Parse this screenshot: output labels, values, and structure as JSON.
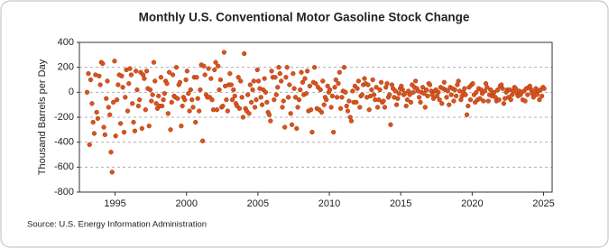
{
  "chart_data": {
    "type": "scatter",
    "title": "Monthly U.S. Conventional Motor Gasoline Stock Change",
    "y_label": "Thousand Barrels per Day",
    "source": "Source: U.S. Energy Information Administration",
    "color": "#d9541e",
    "grid": true,
    "xlim": [
      1992.5,
      2025.6
    ],
    "xticks": [
      1995,
      2000,
      2005,
      2010,
      2015,
      2020,
      2025
    ],
    "ylim": [
      -800,
      400
    ],
    "yticks": [
      -800,
      -600,
      -400,
      -200,
      0,
      200,
      400
    ],
    "x": [
      1993.04,
      1993.13,
      1993.21,
      1993.29,
      1993.38,
      1993.46,
      1993.54,
      1993.63,
      1993.71,
      1993.79,
      1993.88,
      1993.96,
      1994.04,
      1994.13,
      1994.21,
      1994.29,
      1994.38,
      1994.46,
      1994.54,
      1994.63,
      1994.71,
      1994.79,
      1994.88,
      1994.96,
      1995.04,
      1995.13,
      1995.21,
      1995.29,
      1995.38,
      1995.46,
      1995.54,
      1995.63,
      1995.71,
      1995.79,
      1995.88,
      1995.96,
      1996.04,
      1996.13,
      1996.21,
      1996.29,
      1996.38,
      1996.46,
      1996.54,
      1996.63,
      1996.71,
      1996.79,
      1996.88,
      1996.96,
      1997.04,
      1997.13,
      1997.21,
      1997.29,
      1997.38,
      1997.46,
      1997.54,
      1997.63,
      1997.71,
      1997.79,
      1997.88,
      1997.96,
      1998.04,
      1998.13,
      1998.21,
      1998.29,
      1998.38,
      1998.46,
      1998.54,
      1998.63,
      1998.71,
      1998.79,
      1998.88,
      1998.96,
      1999.04,
      1999.13,
      1999.21,
      1999.29,
      1999.38,
      1999.46,
      1999.54,
      1999.63,
      1999.71,
      1999.79,
      1999.88,
      1999.96,
      2000.04,
      2000.13,
      2000.21,
      2000.29,
      2000.38,
      2000.46,
      2000.54,
      2000.63,
      2000.71,
      2000.79,
      2000.88,
      2000.96,
      2001.04,
      2001.13,
      2001.21,
      2001.29,
      2001.38,
      2001.46,
      2001.54,
      2001.63,
      2001.71,
      2001.79,
      2001.88,
      2001.96,
      2002.04,
      2002.13,
      2002.21,
      2002.29,
      2002.38,
      2002.46,
      2002.54,
      2002.63,
      2002.71,
      2002.79,
      2002.88,
      2002.96,
      2003.04,
      2003.13,
      2003.21,
      2003.29,
      2003.38,
      2003.46,
      2003.54,
      2003.63,
      2003.71,
      2003.79,
      2003.88,
      2003.96,
      2004.04,
      2004.13,
      2004.21,
      2004.29,
      2004.38,
      2004.46,
      2004.54,
      2004.63,
      2004.71,
      2004.79,
      2004.88,
      2004.96,
      2005.04,
      2005.13,
      2005.21,
      2005.29,
      2005.38,
      2005.46,
      2005.54,
      2005.63,
      2005.71,
      2005.79,
      2005.88,
      2005.96,
      2006.04,
      2006.13,
      2006.21,
      2006.29,
      2006.38,
      2006.46,
      2006.54,
      2006.63,
      2006.71,
      2006.79,
      2006.88,
      2006.96,
      2007.04,
      2007.13,
      2007.21,
      2007.29,
      2007.38,
      2007.46,
      2007.54,
      2007.63,
      2007.71,
      2007.79,
      2007.88,
      2007.96,
      2008.04,
      2008.13,
      2008.21,
      2008.29,
      2008.38,
      2008.46,
      2008.54,
      2008.63,
      2008.71,
      2008.79,
      2008.88,
      2008.96,
      2009.04,
      2009.13,
      2009.21,
      2009.29,
      2009.38,
      2009.46,
      2009.54,
      2009.63,
      2009.71,
      2009.79,
      2009.88,
      2009.96,
      2010.04,
      2010.13,
      2010.21,
      2010.29,
      2010.38,
      2010.46,
      2010.54,
      2010.63,
      2010.71,
      2010.79,
      2010.88,
      2010.96,
      2011.04,
      2011.13,
      2011.21,
      2011.29,
      2011.38,
      2011.46,
      2011.54,
      2011.63,
      2011.71,
      2011.79,
      2011.88,
      2011.96,
      2012.04,
      2012.13,
      2012.21,
      2012.29,
      2012.38,
      2012.46,
      2012.54,
      2012.63,
      2012.71,
      2012.79,
      2012.88,
      2012.96,
      2013.04,
      2013.13,
      2013.21,
      2013.29,
      2013.38,
      2013.46,
      2013.54,
      2013.63,
      2013.71,
      2013.79,
      2013.88,
      2013.96,
      2014.04,
      2014.13,
      2014.21,
      2014.29,
      2014.38,
      2014.46,
      2014.54,
      2014.63,
      2014.71,
      2014.79,
      2014.88,
      2014.96,
      2015.04,
      2015.13,
      2015.21,
      2015.29,
      2015.38,
      2015.46,
      2015.54,
      2015.63,
      2015.71,
      2015.79,
      2015.88,
      2015.96,
      2016.04,
      2016.13,
      2016.21,
      2016.29,
      2016.38,
      2016.46,
      2016.54,
      2016.63,
      2016.71,
      2016.79,
      2016.88,
      2016.96,
      2017.04,
      2017.13,
      2017.21,
      2017.29,
      2017.38,
      2017.46,
      2017.54,
      2017.63,
      2017.71,
      2017.79,
      2017.88,
      2017.96,
      2018.04,
      2018.13,
      2018.21,
      2018.29,
      2018.38,
      2018.46,
      2018.54,
      2018.63,
      2018.71,
      2018.79,
      2018.88,
      2018.96,
      2019.04,
      2019.13,
      2019.21,
      2019.29,
      2019.38,
      2019.46,
      2019.54,
      2019.63,
      2019.71,
      2019.79,
      2019.88,
      2019.96,
      2020.04,
      2020.13,
      2020.21,
      2020.29,
      2020.38,
      2020.46,
      2020.54,
      2020.63,
      2020.71,
      2020.79,
      2020.88,
      2020.96,
      2021.04,
      2021.13,
      2021.21,
      2021.29,
      2021.38,
      2021.46,
      2021.54,
      2021.63,
      2021.71,
      2021.79,
      2021.88,
      2021.96,
      2022.04,
      2022.13,
      2022.21,
      2022.29,
      2022.38,
      2022.46,
      2022.54,
      2022.63,
      2022.71,
      2022.79,
      2022.88,
      2022.96,
      2023.04,
      2023.13,
      2023.21,
      2023.29,
      2023.38,
      2023.46,
      2023.54,
      2023.63,
      2023.71,
      2023.79,
      2023.88,
      2023.96,
      2024.04,
      2024.13,
      2024.21,
      2024.29,
      2024.38,
      2024.46,
      2024.54,
      2024.63,
      2024.71,
      2024.79,
      2024.88,
      2024.96,
      2025.04
    ],
    "values": [
      0,
      150,
      -420,
      100,
      -90,
      -240,
      -330,
      140,
      -160,
      -210,
      130,
      60,
      240,
      230,
      -280,
      -340,
      -50,
      90,
      -120,
      -180,
      -480,
      -640,
      -80,
      250,
      -350,
      -60,
      60,
      140,
      -250,
      130,
      40,
      -320,
      -40,
      180,
      -150,
      70,
      190,
      140,
      -90,
      -240,
      -310,
      170,
      20,
      -110,
      -60,
      160,
      -290,
      140,
      110,
      -140,
      170,
      30,
      -270,
      20,
      -70,
      -20,
      240,
      90,
      -90,
      -130,
      -30,
      -110,
      120,
      -110,
      -60,
      -10,
      90,
      70,
      -170,
      160,
      -300,
      -80,
      140,
      -30,
      -40,
      200,
      -50,
      60,
      80,
      -270,
      -110,
      -40,
      -60,
      100,
      170,
      -10,
      -150,
      20,
      -60,
      -120,
      120,
      -240,
      120,
      -50,
      -150,
      20,
      220,
      -390,
      210,
      140,
      -20,
      -40,
      190,
      -40,
      110,
      -60,
      -140,
      180,
      240,
      -140,
      210,
      20,
      100,
      -120,
      -110,
      320,
      50,
      -60,
      -150,
      60,
      150,
      60,
      -60,
      20,
      -30,
      -90,
      -110,
      120,
      -130,
      90,
      -40,
      -200,
      310,
      -130,
      -150,
      -20,
      -170,
      60,
      -80,
      20,
      90,
      -120,
      -60,
      180,
      90,
      30,
      -40,
      -100,
      20,
      110,
      0,
      -80,
      -160,
      -180,
      -230,
      170,
      120,
      -60,
      120,
      -20,
      40,
      200,
      150,
      90,
      -120,
      -70,
      -280,
      120,
      200,
      -40,
      60,
      -170,
      -260,
      150,
      30,
      -40,
      -290,
      -120,
      -60,
      20,
      160,
      80,
      -20,
      110,
      -10,
      170,
      -150,
      50,
      -140,
      -320,
      80,
      200,
      70,
      -130,
      40,
      -140,
      20,
      -160,
      90,
      -100,
      -40,
      -60,
      50,
      0,
      20,
      -120,
      -30,
      -320,
      40,
      100,
      -40,
      70,
      160,
      -130,
      -40,
      10,
      200,
      0,
      -110,
      -150,
      -70,
      -200,
      -230,
      10,
      -80,
      50,
      -80,
      30,
      90,
      -120,
      -30,
      -20,
      60,
      110,
      70,
      -40,
      60,
      -140,
      -30,
      20,
      100,
      -20,
      -60,
      40,
      -120,
      -60,
      20,
      80,
      -80,
      -70,
      -120,
      40,
      70,
      -40,
      -20,
      -260,
      60,
      30,
      -40,
      10,
      -100,
      -50,
      -10,
      30,
      50,
      20,
      -20,
      -10,
      -110,
      -60,
      10,
      -20,
      -80,
      60,
      0,
      40,
      90,
      30,
      10,
      -40,
      -80,
      0,
      40,
      -10,
      -120,
      20,
      -30,
      70,
      60,
      10,
      -20,
      -50,
      10,
      20,
      -30,
      0,
      -60,
      40,
      -90,
      30,
      80,
      20,
      -40,
      10,
      -100,
      40,
      -20,
      30,
      -70,
      20,
      -30,
      60,
      90,
      10,
      -60,
      -30,
      0,
      30,
      -20,
      -180,
      -110,
      40,
      -60,
      60,
      70,
      -20,
      -80,
      0,
      -60,
      30,
      -50,
      20,
      -10,
      -70,
      10,
      70,
      40,
      -70,
      -20,
      20,
      -30,
      -10,
      0,
      -40,
      -70,
      20,
      -60,
      50,
      60,
      30,
      -90,
      -50,
      0,
      20,
      -40,
      20,
      -60,
      -20,
      10,
      40,
      30,
      -10,
      -30,
      10,
      -20,
      0,
      -60,
      10,
      -70,
      30,
      -20,
      40,
      50,
      20,
      -10,
      -40,
      0,
      30,
      -20,
      10,
      -60,
      20,
      -30,
      40,
      30
    ]
  }
}
